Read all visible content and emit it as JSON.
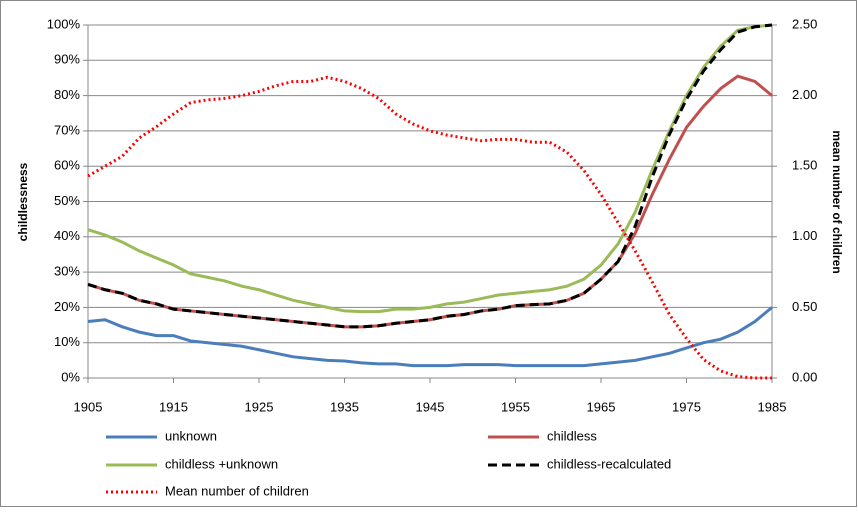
{
  "chart_data": {
    "type": "line",
    "ylabel": "childlessness",
    "y2label": "mean number of children",
    "x": [
      1905,
      1907,
      1909,
      1911,
      1913,
      1915,
      1917,
      1919,
      1921,
      1923,
      1925,
      1927,
      1929,
      1931,
      1933,
      1935,
      1937,
      1939,
      1941,
      1943,
      1945,
      1947,
      1949,
      1951,
      1953,
      1955,
      1957,
      1959,
      1961,
      1963,
      1965,
      1967,
      1969,
      1971,
      1973,
      1975,
      1977,
      1979,
      1981,
      1983,
      1985
    ],
    "xlim": [
      1905,
      1985
    ],
    "xticks": [
      1905,
      1915,
      1925,
      1935,
      1945,
      1955,
      1965,
      1975,
      1985
    ],
    "ylim": [
      0,
      100
    ],
    "yticks": [
      {
        "value": 0,
        "label": "0%"
      },
      {
        "value": 10,
        "label": "10%"
      },
      {
        "value": 20,
        "label": "20%"
      },
      {
        "value": 30,
        "label": "30%"
      },
      {
        "value": 40,
        "label": "40%"
      },
      {
        "value": 50,
        "label": "50%"
      },
      {
        "value": 60,
        "label": "60%"
      },
      {
        "value": 70,
        "label": "70%"
      },
      {
        "value": 80,
        "label": "80%"
      },
      {
        "value": 90,
        "label": "90%"
      },
      {
        "value": 100,
        "label": "100%"
      }
    ],
    "y2lim": [
      0,
      2.5
    ],
    "y2ticks": [
      {
        "value": 0,
        "label": "0.00"
      },
      {
        "value": 0.5,
        "label": "0.50"
      },
      {
        "value": 1,
        "label": "1.00"
      },
      {
        "value": 1.5,
        "label": "1.50"
      },
      {
        "value": 2,
        "label": "2.00"
      },
      {
        "value": 2.5,
        "label": "2.50"
      }
    ],
    "grid": true,
    "legend": "bottom",
    "series": [
      {
        "name": "unknown",
        "color": "#4a7ebb",
        "style": "solid",
        "values": [
          16,
          16.5,
          14.5,
          13,
          12,
          12,
          10.5,
          10,
          9.5,
          9,
          8,
          7,
          6,
          5.5,
          5,
          4.8,
          4.3,
          4,
          4,
          3.5,
          3.5,
          3.5,
          3.8,
          3.8,
          3.8,
          3.5,
          3.5,
          3.5,
          3.5,
          3.5,
          4,
          4.5,
          5,
          6,
          7,
          8.5,
          10,
          11,
          13,
          16,
          20
        ]
      },
      {
        "name": "childless",
        "color": "#c0504d",
        "style": "solid",
        "values": [
          26.5,
          25,
          24,
          22,
          21,
          19.5,
          19,
          18.5,
          18,
          17.5,
          17,
          16.5,
          16,
          15.5,
          15,
          14.5,
          14.5,
          14.8,
          15.5,
          16,
          16.5,
          17.5,
          18,
          19,
          19.5,
          20.5,
          20.8,
          21,
          22,
          24,
          28,
          33,
          41,
          52,
          62,
          71,
          77,
          82,
          85.5,
          84,
          80
        ]
      },
      {
        "name": "childless +unknown",
        "color": "#9bbb59",
        "style": "solid",
        "values": [
          42,
          40.5,
          38.5,
          36,
          34,
          32,
          29.5,
          28.5,
          27.5,
          26,
          25,
          23.5,
          22,
          21,
          20,
          19,
          18.8,
          18.8,
          19.5,
          19.5,
          20,
          21,
          21.5,
          22.5,
          23.5,
          24,
          24.5,
          25,
          26,
          28,
          32,
          38,
          47,
          59,
          70,
          80,
          88,
          94,
          98.5,
          99.5,
          100
        ]
      },
      {
        "name": "childless-recalculated",
        "color": "#000000",
        "style": "dashed",
        "values": [
          26.5,
          25,
          24,
          22,
          21,
          19.5,
          19,
          18.5,
          18,
          17.5,
          17,
          16.5,
          16,
          15.5,
          15,
          14.5,
          14.5,
          14.8,
          15.5,
          16,
          16.5,
          17.5,
          18,
          19,
          19.5,
          20.5,
          20.8,
          21,
          22,
          24,
          28,
          33,
          43,
          57,
          69,
          79,
          87,
          93,
          98,
          99.5,
          100
        ]
      },
      {
        "name": "Mean number of children",
        "color": "#ff0000",
        "style": "dotted",
        "axis": "y2",
        "values": [
          1.43,
          1.5,
          1.57,
          1.7,
          1.78,
          1.87,
          1.95,
          1.97,
          1.98,
          2,
          2.03,
          2.07,
          2.1,
          2.1,
          2.13,
          2.1,
          2.05,
          1.98,
          1.87,
          1.8,
          1.75,
          1.72,
          1.7,
          1.68,
          1.69,
          1.69,
          1.67,
          1.67,
          1.6,
          1.47,
          1.3,
          1.1,
          0.9,
          0.68,
          0.45,
          0.28,
          0.13,
          0.05,
          0.01,
          0,
          0
        ]
      }
    ]
  }
}
